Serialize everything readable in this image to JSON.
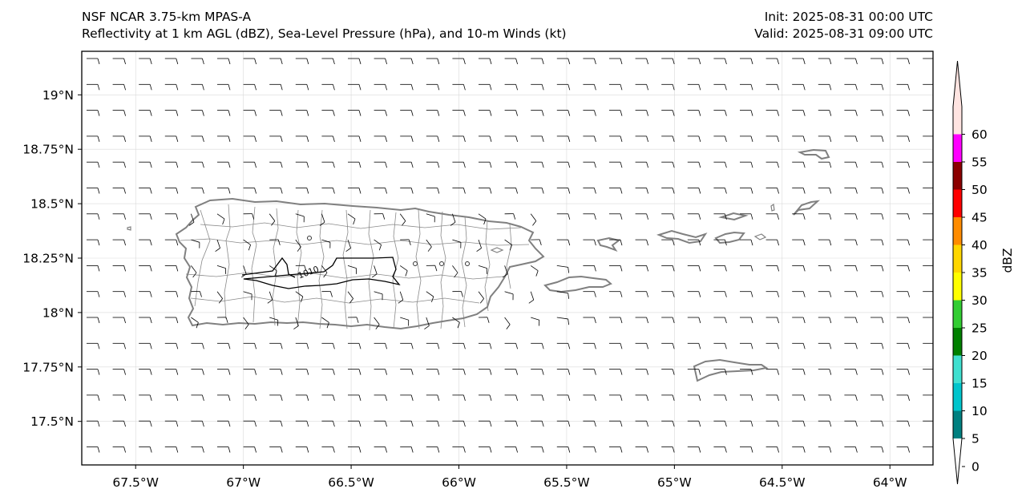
{
  "header": {
    "model_line": "NSF NCAR 3.75-km MPAS-A",
    "fields_line": "Reflectivity at 1 km AGL (dBZ), Sea-Level Pressure (hPa), and 10-m Winds (kt)",
    "init_line": "Init: 2025-08-31 00:00 UTC",
    "valid_line": "Valid: 2025-08-31 09:00 UTC"
  },
  "map": {
    "lon_ticks": [
      "67.5°W",
      "67°W",
      "66.5°W",
      "66°W",
      "65.5°W",
      "65°W",
      "64.5°W",
      "64°W"
    ],
    "lat_ticks": [
      "19°N",
      "18.75°N",
      "18.5°N",
      "18.25°N",
      "18°N",
      "17.75°N",
      "17.5°N"
    ],
    "lon_values": [
      -67.5,
      -67.0,
      -66.5,
      -66.0,
      -65.5,
      -65.0,
      -64.5,
      -64.0
    ],
    "lat_values": [
      19.0,
      18.75,
      18.5,
      18.25,
      18.0,
      17.75,
      17.5
    ],
    "lon_range": [
      -67.75,
      -63.8
    ],
    "lat_range": [
      17.3,
      19.2
    ],
    "pressure_contour_label": "1010",
    "coastline_color": "#808080",
    "contour_color": "#000000"
  },
  "colorbar": {
    "label": "dBZ",
    "ticks": [
      "0",
      "5",
      "10",
      "15",
      "20",
      "25",
      "30",
      "35",
      "40",
      "45",
      "50",
      "55",
      "60"
    ],
    "colors": [
      "#ffffff",
      "#008080",
      "#00c5cc",
      "#40e0d0",
      "#008000",
      "#32cd32",
      "#ffff00",
      "#ffd700",
      "#ff8c00",
      "#ff0000",
      "#8b0000",
      "#ff00ff",
      "#ffe4e1"
    ]
  }
}
